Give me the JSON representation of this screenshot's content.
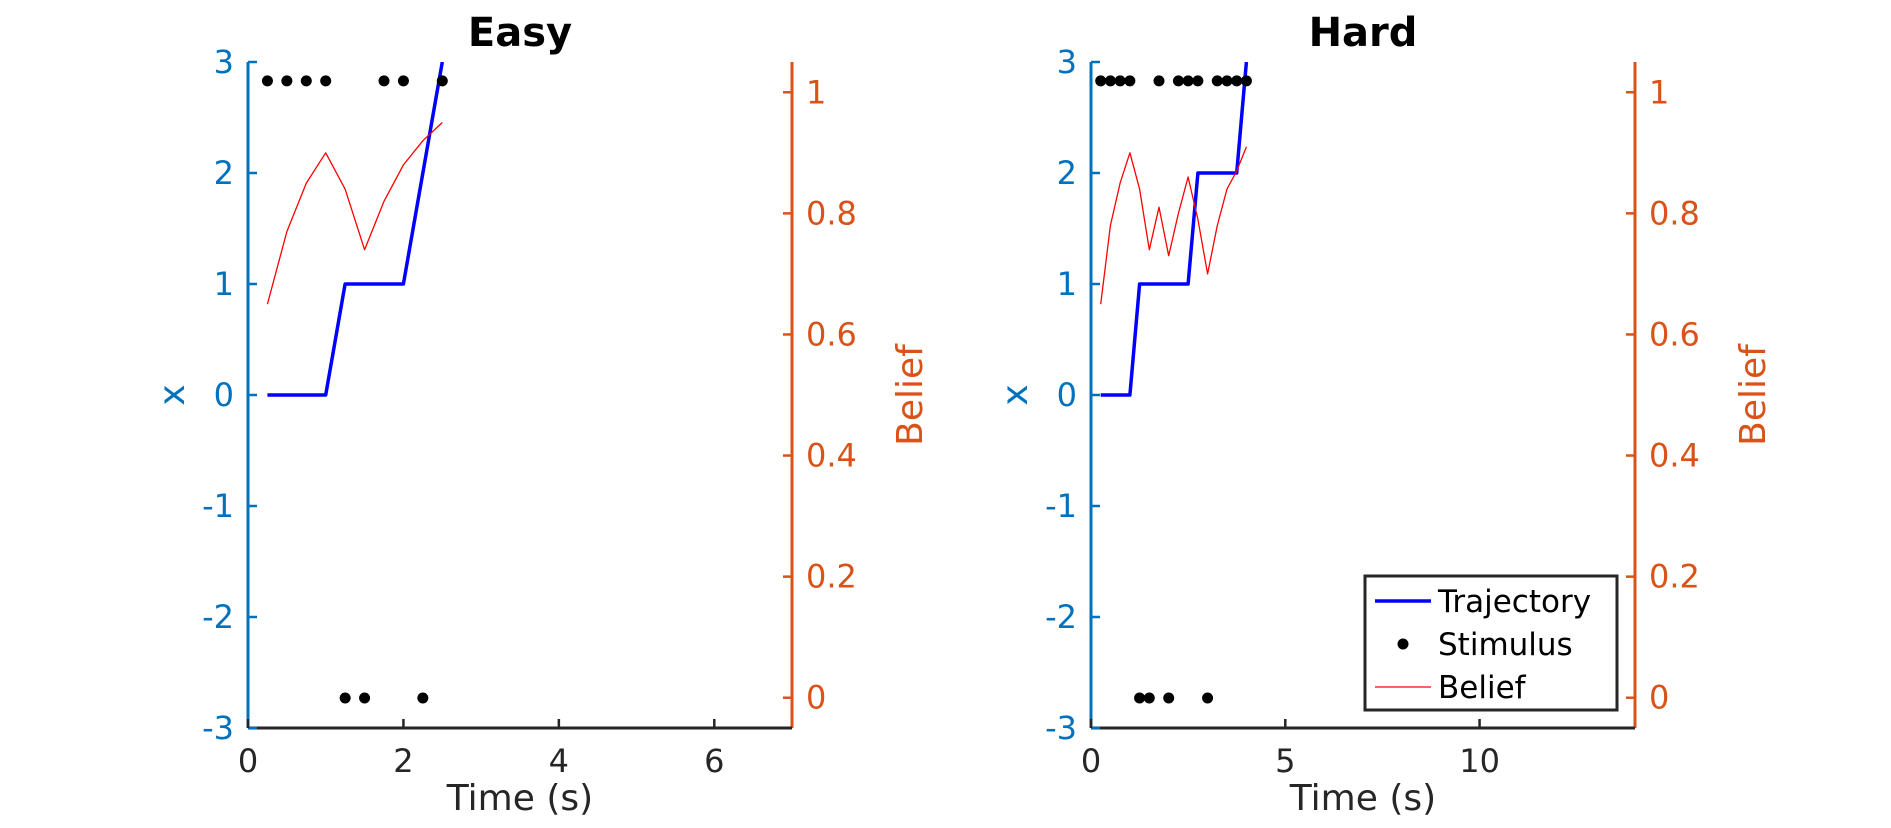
{
  "colors": {
    "left_axis": "#0072BD",
    "right_axis": "#D95319",
    "trajectory": "#0000FF",
    "belief": "#FF0000",
    "stimulus": "#000000",
    "axis_dark": "#262626"
  },
  "legend": {
    "placement": "bottom-right of second panel",
    "entries": [
      "Trajectory",
      "Stimulus",
      "Belief"
    ]
  },
  "chart_data": [
    {
      "type": "line",
      "title": "Easy",
      "xlabel": "Time (s)",
      "ylabel_left": "x",
      "ylabel_right": "Belief",
      "xlim": [
        0,
        7
      ],
      "ylim_left": [
        -3,
        3
      ],
      "ylim_right": [
        -0.05,
        1.05
      ],
      "xticks": [
        0,
        2,
        4,
        6
      ],
      "xtick_labels": [
        "0",
        "2",
        "4",
        "6"
      ],
      "yticks_left": [
        -3,
        -2,
        -1,
        0,
        1,
        2,
        3
      ],
      "ytick_labels_left": [
        "-3",
        "-2",
        "-1",
        "0",
        "1",
        "2",
        "3"
      ],
      "yticks_right": [
        0,
        0.2,
        0.4,
        0.6,
        0.8,
        1
      ],
      "ytick_labels_right": [
        "0",
        "0.2",
        "0.4",
        "0.6",
        "0.8",
        "1"
      ],
      "series": [
        {
          "name": "Trajectory",
          "axis": "left",
          "style": "line",
          "x": [
            0.25,
            1.0,
            1.25,
            2.0,
            2.5
          ],
          "y": [
            0,
            0,
            1,
            1,
            3
          ]
        },
        {
          "name": "Stimulus",
          "axis": "left",
          "style": "dots",
          "x": [
            0.25,
            0.5,
            0.75,
            1.0,
            1.25,
            1.5,
            1.75,
            2.0,
            2.25,
            2.5
          ],
          "y": [
            2.83,
            2.83,
            2.83,
            2.83,
            -2.73,
            -2.73,
            2.83,
            2.83,
            -2.73,
            2.83
          ]
        },
        {
          "name": "Belief",
          "axis": "right",
          "style": "thin-line",
          "x": [
            0.25,
            0.5,
            0.75,
            1.0,
            1.25,
            1.5,
            1.75,
            2.0,
            2.25,
            2.5
          ],
          "y": [
            0.65,
            0.77,
            0.85,
            0.9,
            0.84,
            0.74,
            0.82,
            0.88,
            0.92,
            0.95
          ]
        }
      ]
    },
    {
      "type": "line",
      "title": "Hard",
      "xlabel": "Time (s)",
      "ylabel_left": "x",
      "ylabel_right": "Belief",
      "xlim": [
        0,
        14
      ],
      "ylim_left": [
        -3,
        3
      ],
      "ylim_right": [
        -0.05,
        1.05
      ],
      "xticks": [
        0,
        5,
        10
      ],
      "xtick_labels": [
        "0",
        "5",
        "10"
      ],
      "yticks_left": [
        -3,
        -2,
        -1,
        0,
        1,
        2,
        3
      ],
      "ytick_labels_left": [
        "-3",
        "-2",
        "-1",
        "0",
        "1",
        "2",
        "3"
      ],
      "yticks_right": [
        0,
        0.2,
        0.4,
        0.6,
        0.8,
        1
      ],
      "ytick_labels_right": [
        "0",
        "0.2",
        "0.4",
        "0.6",
        "0.8",
        "1"
      ],
      "series": [
        {
          "name": "Trajectory",
          "axis": "left",
          "style": "line",
          "x": [
            0.25,
            1.0,
            1.25,
            2.5,
            2.75,
            3.75,
            4.0
          ],
          "y": [
            0,
            0,
            1,
            1,
            2,
            2,
            3
          ]
        },
        {
          "name": "Stimulus",
          "axis": "left",
          "style": "dots",
          "x": [
            0.25,
            0.5,
            0.75,
            1.0,
            1.25,
            1.5,
            1.75,
            2.0,
            2.25,
            2.5,
            2.75,
            3.0,
            3.25,
            3.5,
            3.75,
            4.0
          ],
          "y": [
            2.83,
            2.83,
            2.83,
            2.83,
            -2.73,
            -2.73,
            2.83,
            -2.73,
            2.83,
            2.83,
            2.83,
            -2.73,
            2.83,
            2.83,
            2.83,
            2.83
          ]
        },
        {
          "name": "Belief",
          "axis": "right",
          "style": "thin-line",
          "x": [
            0.25,
            0.5,
            0.75,
            1.0,
            1.25,
            1.5,
            1.75,
            2.0,
            2.25,
            2.5,
            2.75,
            3.0,
            3.25,
            3.5,
            3.75,
            4.0
          ],
          "y": [
            0.65,
            0.78,
            0.85,
            0.9,
            0.84,
            0.74,
            0.81,
            0.73,
            0.8,
            0.86,
            0.79,
            0.7,
            0.78,
            0.84,
            0.87,
            0.91
          ]
        }
      ]
    }
  ]
}
